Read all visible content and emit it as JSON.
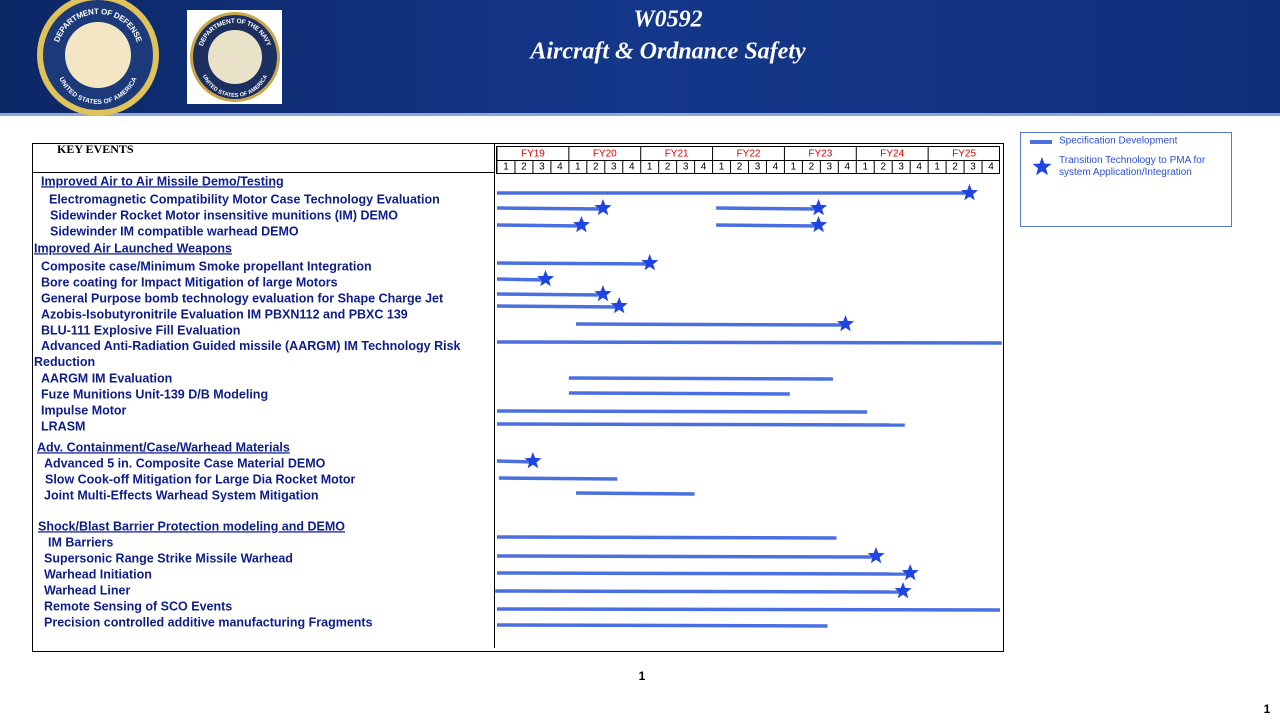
{
  "header": {
    "code": "W0592",
    "title": "Aircraft & Ordnance Safety",
    "seal_left": "DEPARTMENT OF DEFENSE",
    "seal_left_bottom": "UNITED STATES OF AMERICA",
    "seal_right": "DEPARTMENT OF THE NAVY",
    "seal_right_bottom": "UNITED STATES OF AMERICA"
  },
  "table": {
    "key_events_label": "KEY EVENTS",
    "years": [
      "FY19",
      "FY20",
      "FY21",
      "FY22",
      "FY23",
      "FY24",
      "FY25"
    ],
    "quarters": [
      "1",
      "2",
      "3",
      "4"
    ],
    "rows": [
      {
        "text": "Improved Air to Air Missile Demo/Testing",
        "kind": "heading",
        "bars": []
      },
      {
        "text": "Electromagnetic Compatibility Motor Case Technology Evaluation",
        "kind": "item",
        "bars": [
          {
            "start": 0,
            "end": 26.3,
            "star": 26.3
          }
        ]
      },
      {
        "text": "Sidewinder Rocket Motor insensitive munitions (IM) DEMO",
        "kind": "item",
        "bars": [
          {
            "start": 0,
            "end": 5.9,
            "star": 5.9
          },
          {
            "start": 12.2,
            "end": 17.9,
            "star": 17.9
          }
        ]
      },
      {
        "text": "Sidewinder IM compatible warhead DEMO",
        "kind": "item",
        "bars": [
          {
            "start": 0,
            "end": 4.7,
            "star": 4.7
          },
          {
            "start": 12.2,
            "end": 17.9,
            "star": 17.9
          }
        ]
      },
      {
        "text": "Improved Air Launched Weapons",
        "kind": "heading",
        "bars": []
      },
      {
        "text": "Composite case/Minimum Smoke propellant Integration",
        "kind": "item",
        "bars": [
          {
            "start": 0,
            "end": 8.5,
            "star": 8.5
          }
        ]
      },
      {
        "text": "Bore coating for Impact Mitigation of large Motors",
        "kind": "item",
        "bars": [
          {
            "start": 0,
            "end": 2.7,
            "star": 2.7
          }
        ]
      },
      {
        "text": "General Purpose bomb technology evaluation for Shape Charge Jet",
        "kind": "item",
        "bars": [
          {
            "start": 0,
            "end": 5.9,
            "star": 5.9
          }
        ]
      },
      {
        "text": "Azobis-Isobutyronitrile  Evaluation IM PBXN112  and PBXC 139",
        "kind": "item",
        "bars": [
          {
            "start": 0,
            "end": 6.8,
            "star": 6.8
          }
        ]
      },
      {
        "text": "BLU-111  Explosive Fill Evaluation",
        "kind": "item",
        "bars": [
          {
            "start": 4.4,
            "end": 19.4,
            "star": 19.4
          }
        ]
      },
      {
        "text": "Advanced Anti-Radiation Guided missile (AARGM)  IM Technology Risk Reduction",
        "kind": "item",
        "bars": [
          {
            "start": 0,
            "end": 28.1
          }
        ]
      },
      {
        "text": "AARGM   IM Evaluation",
        "kind": "item",
        "bars": [
          {
            "start": 4,
            "end": 18.7
          }
        ]
      },
      {
        "text": "Fuze Munitions Unit-139  D/B Modeling",
        "kind": "item",
        "bars": [
          {
            "start": 4,
            "end": 16.3
          }
        ]
      },
      {
        "text": "Impulse Motor",
        "kind": "item",
        "bars": [
          {
            "start": 0,
            "end": 20.6
          }
        ]
      },
      {
        "text": "LRASM",
        "kind": "item",
        "bars": [
          {
            "start": 0,
            "end": 22.7
          }
        ]
      },
      {
        "text": "Adv. Containment/Case/Warhead Materials",
        "kind": "heading",
        "bars": []
      },
      {
        "text": "Advanced 5 in. Composite Case Material DEMO",
        "kind": "item",
        "bars": [
          {
            "start": 0,
            "end": 2,
            "star": 2
          }
        ]
      },
      {
        "text": "Slow Cook-off  Mitigation for Large Dia Rocket Motor",
        "kind": "item",
        "bars": [
          {
            "start": 0.1,
            "end": 6.7
          }
        ]
      },
      {
        "text": "Joint  Multi-Effects  Warhead System Mitigation",
        "kind": "item",
        "bars": [
          {
            "start": 4.4,
            "end": 11
          }
        ]
      },
      {
        "text": "Shock/Blast  Barrier Protection modeling and DEMO",
        "kind": "heading",
        "bars": []
      },
      {
        "text": "IM Barriers",
        "kind": "item",
        "bars": [
          {
            "start": 0,
            "end": 18.9
          }
        ]
      },
      {
        "text": "Supersonic Range Strike Missile Warhead",
        "kind": "item",
        "bars": [
          {
            "start": 0,
            "end": 21.1,
            "star": 21.1
          }
        ]
      },
      {
        "text": "Warhead Initiation",
        "kind": "item",
        "bars": [
          {
            "start": 0,
            "end": 23,
            "star": 23
          }
        ]
      },
      {
        "text": "Warhead Liner",
        "kind": "item",
        "bars": [
          {
            "start": -0.1,
            "end": 22.6,
            "star": 22.6
          }
        ]
      },
      {
        "text": "Remote Sensing of SCO Events",
        "kind": "item",
        "bars": [
          {
            "start": 0,
            "end": 28
          }
        ]
      },
      {
        "text": "Precision controlled additive manufacturing Fragments",
        "kind": "item",
        "bars": [
          {
            "start": 0,
            "end": 18.4
          }
        ]
      }
    ]
  },
  "legend": {
    "line": "Specification Development",
    "star": "Transition Technology to PMA  for system Application/Integration"
  },
  "footer": {
    "page_center": "1",
    "page_corner": "1"
  }
}
